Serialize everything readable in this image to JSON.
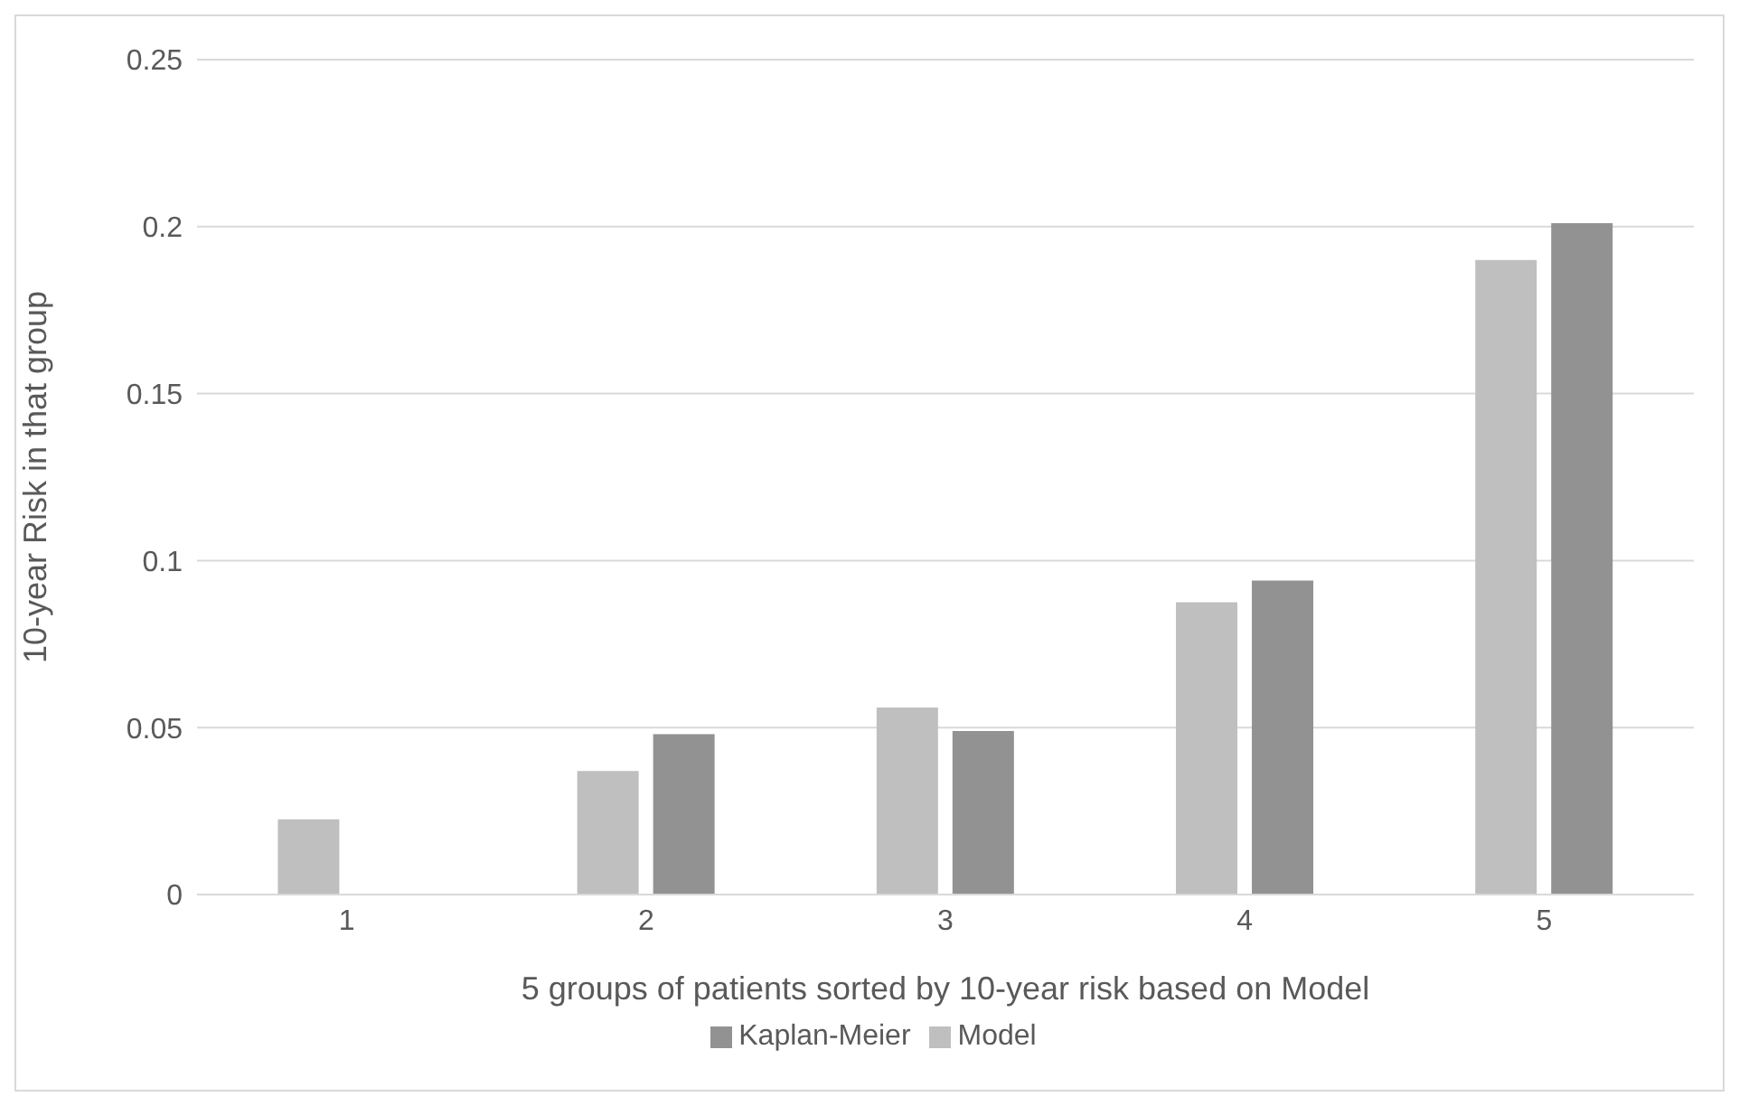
{
  "chart_data": {
    "type": "bar",
    "xlabel": "5 groups of patients sorted by 10-year risk based on Model",
    "ylabel": "10-year Risk in that group",
    "categories": [
      "1",
      "2",
      "3",
      "4",
      "5"
    ],
    "series": [
      {
        "name": "Model",
        "color": "#bfbfbf",
        "values": [
          0.0225,
          0.037,
          0.056,
          0.0875,
          0.19
        ]
      },
      {
        "name": "Kaplan-Meier",
        "color": "#929292",
        "values": [
          null,
          0.048,
          0.049,
          0.094,
          0.201
        ]
      }
    ],
    "ylim": [
      0,
      0.25
    ],
    "yticks": [
      0,
      0.05,
      0.1,
      0.15,
      0.2,
      0.25
    ],
    "grid": "y",
    "legend": "bottom"
  }
}
